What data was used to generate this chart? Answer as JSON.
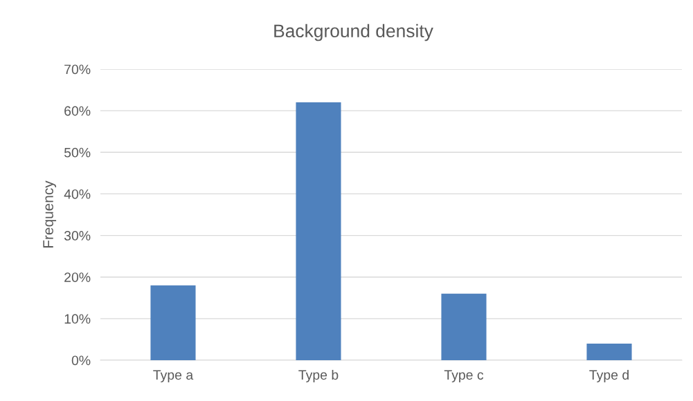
{
  "chart_data": {
    "type": "bar",
    "title": "Background density",
    "ylabel": "Frequency",
    "categories": [
      "Type a",
      "Type b",
      "Type c",
      "Type d"
    ],
    "values": [
      18,
      62,
      16,
      4
    ],
    "color": "#4f81bd",
    "ylim": [
      0,
      70
    ],
    "yticks": [
      {
        "value": 0,
        "label": "0%"
      },
      {
        "value": 10,
        "label": "10%"
      },
      {
        "value": 20,
        "label": "20%"
      },
      {
        "value": 30,
        "label": "30%"
      },
      {
        "value": 40,
        "label": "40%"
      },
      {
        "value": 50,
        "label": "50%"
      },
      {
        "value": 60,
        "label": "60%"
      },
      {
        "value": 70,
        "label": "70%"
      }
    ],
    "grid": "y",
    "legend": false
  }
}
